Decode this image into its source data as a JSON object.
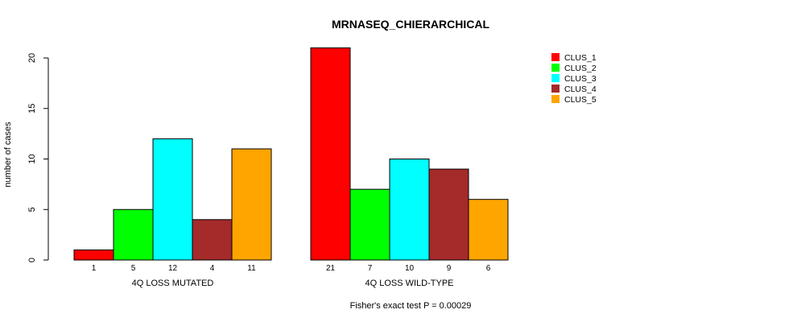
{
  "chart_data": {
    "type": "bar",
    "title": "MRNASEQ_CHIERARCHICAL",
    "ylabel": "number of cases",
    "ylim": [
      0,
      21
    ],
    "yticks": [
      0,
      5,
      10,
      15,
      20
    ],
    "subtitle": "Fisher's exact test P = 0.00029",
    "groups": [
      {
        "label": "4Q LOSS MUTATED",
        "values": [
          1,
          5,
          12,
          4,
          11
        ]
      },
      {
        "label": "4Q LOSS WILD-TYPE",
        "values": [
          21,
          7,
          10,
          9,
          6
        ]
      }
    ],
    "series": [
      {
        "name": "CLUS_1",
        "color": "#ff0000"
      },
      {
        "name": "CLUS_2",
        "color": "#00ff00"
      },
      {
        "name": "CLUS_3",
        "color": "#00ffff"
      },
      {
        "name": "CLUS_4",
        "color": "#a52a2a"
      },
      {
        "name": "CLUS_5",
        "color": "#ffa500"
      }
    ],
    "legend_position": "top-right",
    "grid": false
  }
}
